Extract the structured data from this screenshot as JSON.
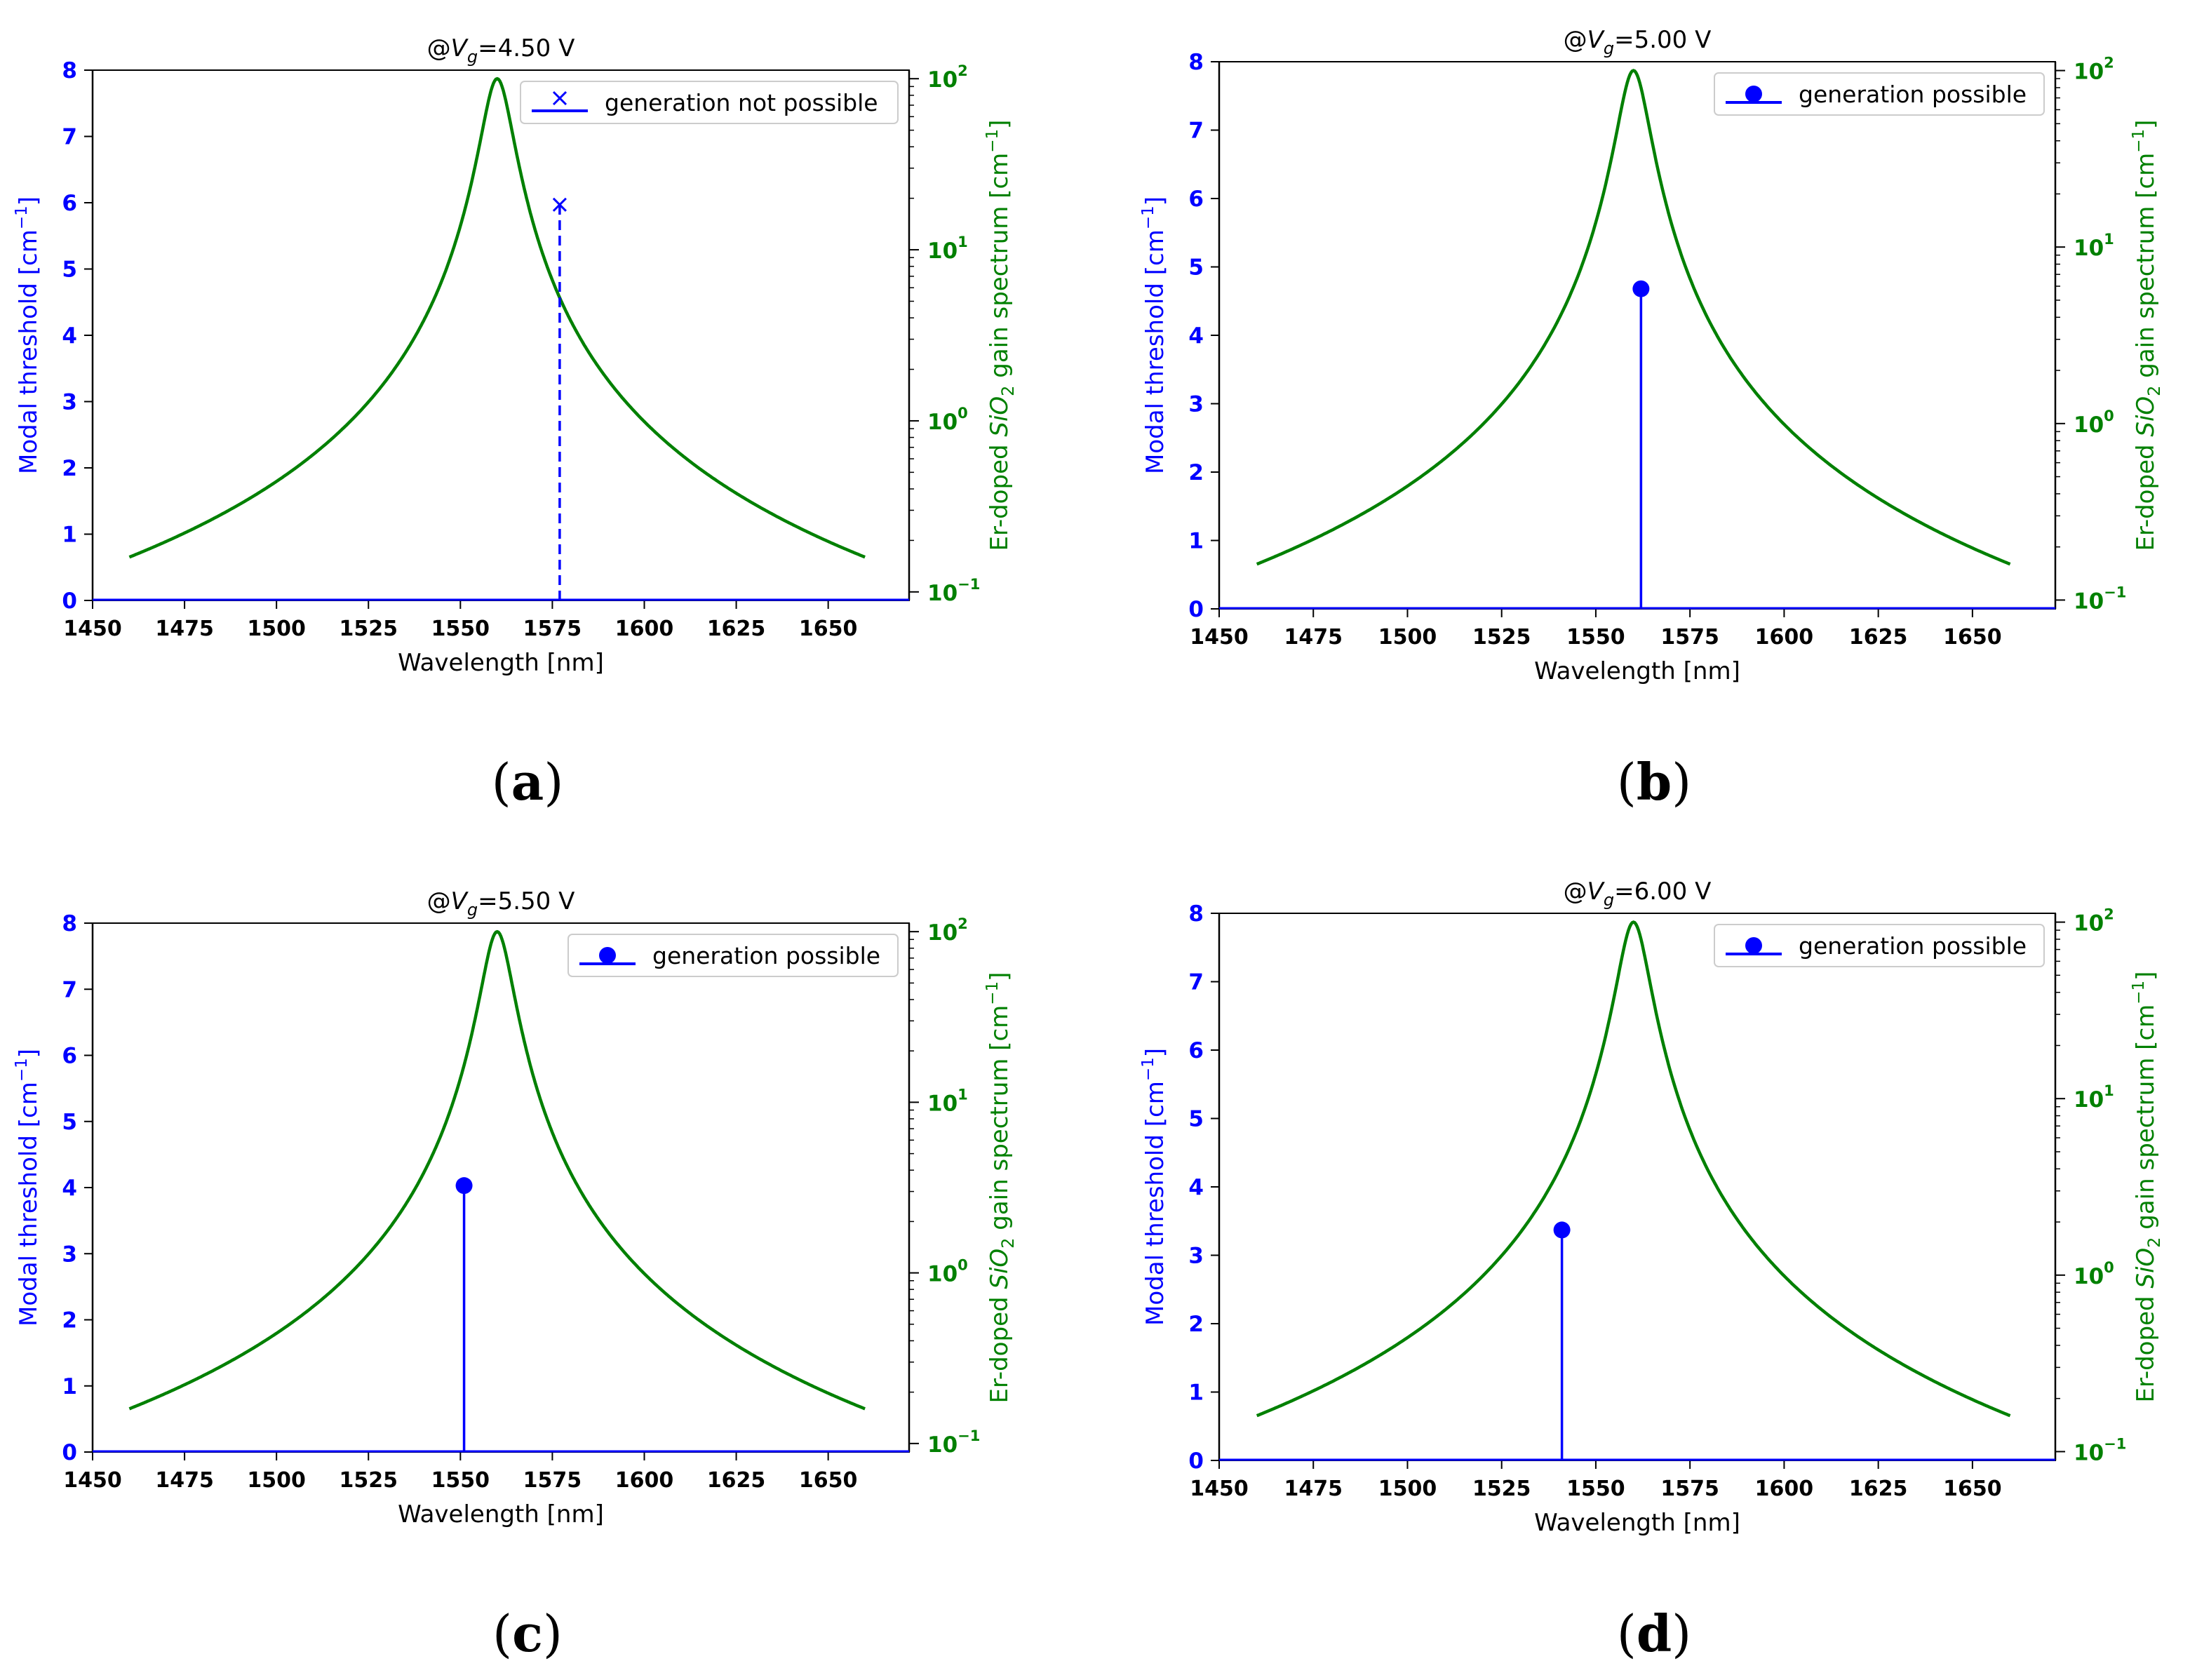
{
  "colors": {
    "threshold": "#0000ff",
    "gain": "#008000",
    "axis": "#000000"
  },
  "chart_data": [
    {
      "type": "line",
      "panel_label": "a",
      "title_prefix": "@",
      "title_var": "V",
      "title_sub": "g",
      "title_value": "=4.50 V",
      "xlabel": "Wavelength [nm]",
      "ylabel_left": "Modal threshold [cm",
      "ylabel_left_exp": "−1",
      "ylabel_left_close": "]",
      "ylabel_right_pre": "Er-doped ",
      "ylabel_right_chem": "SiO",
      "ylabel_right_sub": "2",
      "ylabel_right_post": " gain spectrum [cm",
      "ylabel_right_exp": "−1",
      "ylabel_right_close": "]",
      "xlim": [
        1450,
        1672
      ],
      "ylim_left": [
        0,
        8
      ],
      "ylim_right_log10": [
        -1.05,
        2.05
      ],
      "x_ticks": [
        "1450",
        "1475",
        "1500",
        "1525",
        "1550",
        "1575",
        "1600",
        "1625",
        "1650"
      ],
      "y_left_ticks": [
        "0",
        "1",
        "2",
        "3",
        "4",
        "5",
        "6",
        "7",
        "8"
      ],
      "y_right_ticks": [
        {
          "base": "10",
          "exp": "−1"
        },
        {
          "base": "10",
          "exp": "0"
        },
        {
          "base": "10",
          "exp": "1"
        },
        {
          "base": "10",
          "exp": "2"
        }
      ],
      "gain_spectrum": {
        "peak_nm": 1560,
        "peak_value": 100,
        "gamma_nm": 4,
        "x_start": 1460,
        "x_end": 1660
      },
      "threshold_point": {
        "x": 1577,
        "y": 5.97,
        "marker": "x",
        "style": "dashed"
      },
      "legend": {
        "label": "generation not possible",
        "marker": "x",
        "placement": "upper right"
      }
    },
    {
      "type": "line",
      "panel_label": "b",
      "title_prefix": "@",
      "title_var": "V",
      "title_sub": "g",
      "title_value": "=5.00 V",
      "xlabel": "Wavelength [nm]",
      "ylabel_left": "Modal threshold [cm",
      "ylabel_left_exp": "−1",
      "ylabel_left_close": "]",
      "ylabel_right_pre": "Er-doped ",
      "ylabel_right_chem": "SiO",
      "ylabel_right_sub": "2",
      "ylabel_right_post": " gain spectrum [cm",
      "ylabel_right_exp": "−1",
      "ylabel_right_close": "]",
      "xlim": [
        1450,
        1672
      ],
      "ylim_left": [
        0,
        8
      ],
      "ylim_right_log10": [
        -1.05,
        2.05
      ],
      "x_ticks": [
        "1450",
        "1475",
        "1500",
        "1525",
        "1550",
        "1575",
        "1600",
        "1625",
        "1650"
      ],
      "y_left_ticks": [
        "0",
        "1",
        "2",
        "3",
        "4",
        "5",
        "6",
        "7",
        "8"
      ],
      "y_right_ticks": [
        {
          "base": "10",
          "exp": "−1"
        },
        {
          "base": "10",
          "exp": "0"
        },
        {
          "base": "10",
          "exp": "1"
        },
        {
          "base": "10",
          "exp": "2"
        }
      ],
      "gain_spectrum": {
        "peak_nm": 1560,
        "peak_value": 100,
        "gamma_nm": 4,
        "x_start": 1460,
        "x_end": 1660
      },
      "threshold_point": {
        "x": 1562,
        "y": 4.68,
        "marker": "o",
        "style": "solid"
      },
      "legend": {
        "label": "generation possible",
        "marker": "o",
        "placement": "upper right"
      }
    },
    {
      "type": "line",
      "panel_label": "c",
      "title_prefix": "@",
      "title_var": "V",
      "title_sub": "g",
      "title_value": "=5.50 V",
      "xlabel": "Wavelength [nm]",
      "ylabel_left": "Modal threshold [cm",
      "ylabel_left_exp": "−1",
      "ylabel_left_close": "]",
      "ylabel_right_pre": "Er-doped ",
      "ylabel_right_chem": "SiO",
      "ylabel_right_sub": "2",
      "ylabel_right_post": " gain spectrum [cm",
      "ylabel_right_exp": "−1",
      "ylabel_right_close": "]",
      "xlim": [
        1450,
        1672
      ],
      "ylim_left": [
        0,
        8
      ],
      "ylim_right_log10": [
        -1.05,
        2.05
      ],
      "x_ticks": [
        "1450",
        "1475",
        "1500",
        "1525",
        "1550",
        "1575",
        "1600",
        "1625",
        "1650"
      ],
      "y_left_ticks": [
        "0",
        "1",
        "2",
        "3",
        "4",
        "5",
        "6",
        "7",
        "8"
      ],
      "y_right_ticks": [
        {
          "base": "10",
          "exp": "−1"
        },
        {
          "base": "10",
          "exp": "0"
        },
        {
          "base": "10",
          "exp": "1"
        },
        {
          "base": "10",
          "exp": "2"
        }
      ],
      "gain_spectrum": {
        "peak_nm": 1560,
        "peak_value": 100,
        "gamma_nm": 4,
        "x_start": 1460,
        "x_end": 1660
      },
      "threshold_point": {
        "x": 1551,
        "y": 4.03,
        "marker": "o",
        "style": "solid"
      },
      "legend": {
        "label": "generation possible",
        "marker": "o",
        "placement": "upper right"
      }
    },
    {
      "type": "line",
      "panel_label": "d",
      "title_prefix": "@",
      "title_var": "V",
      "title_sub": "g",
      "title_value": "=6.00 V",
      "xlabel": "Wavelength [nm]",
      "ylabel_left": "Modal threshold [cm",
      "ylabel_left_exp": "−1",
      "ylabel_left_close": "]",
      "ylabel_right_pre": "Er-doped ",
      "ylabel_right_chem": "SiO",
      "ylabel_right_sub": "2",
      "ylabel_right_post": " gain spectrum [cm",
      "ylabel_right_exp": "−1",
      "ylabel_right_close": "]",
      "xlim": [
        1450,
        1672
      ],
      "ylim_left": [
        0,
        8
      ],
      "ylim_right_log10": [
        -1.05,
        2.05
      ],
      "x_ticks": [
        "1450",
        "1475",
        "1500",
        "1525",
        "1550",
        "1575",
        "1600",
        "1625",
        "1650"
      ],
      "y_left_ticks": [
        "0",
        "1",
        "2",
        "3",
        "4",
        "5",
        "6",
        "7",
        "8"
      ],
      "y_right_ticks": [
        {
          "base": "10",
          "exp": "−1"
        },
        {
          "base": "10",
          "exp": "0"
        },
        {
          "base": "10",
          "exp": "1"
        },
        {
          "base": "10",
          "exp": "2"
        }
      ],
      "gain_spectrum": {
        "peak_nm": 1560,
        "peak_value": 100,
        "gamma_nm": 4,
        "x_start": 1460,
        "x_end": 1660
      },
      "threshold_point": {
        "x": 1541,
        "y": 3.37,
        "marker": "o",
        "style": "solid"
      },
      "legend": {
        "label": "generation possible",
        "marker": "o",
        "placement": "upper right"
      }
    }
  ]
}
